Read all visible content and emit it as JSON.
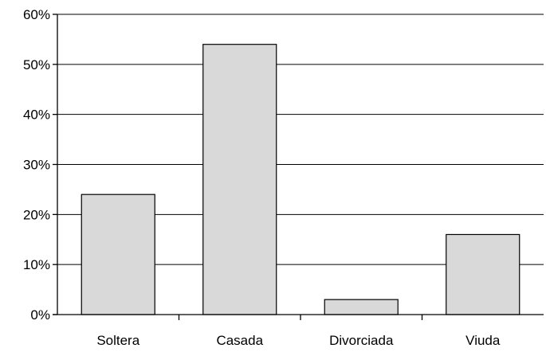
{
  "chart_data": {
    "type": "bar",
    "title": "",
    "xlabel": "",
    "ylabel": "",
    "categories": [
      "Soltera",
      "Casada",
      "Divorciada",
      "Viuda"
    ],
    "values": [
      24,
      54,
      3,
      16
    ],
    "unit": "%",
    "ylim": [
      0,
      60
    ],
    "yticks": [
      0,
      10,
      20,
      30,
      40,
      50,
      60
    ],
    "ytick_labels": [
      "0%",
      "10%",
      "20%",
      "30%",
      "40%",
      "50%",
      "60%"
    ],
    "grid": true,
    "legend": "none",
    "colors": {
      "bar_fill": "#d9d9d9",
      "bar_stroke": "#000000",
      "grid": "#000000"
    }
  }
}
